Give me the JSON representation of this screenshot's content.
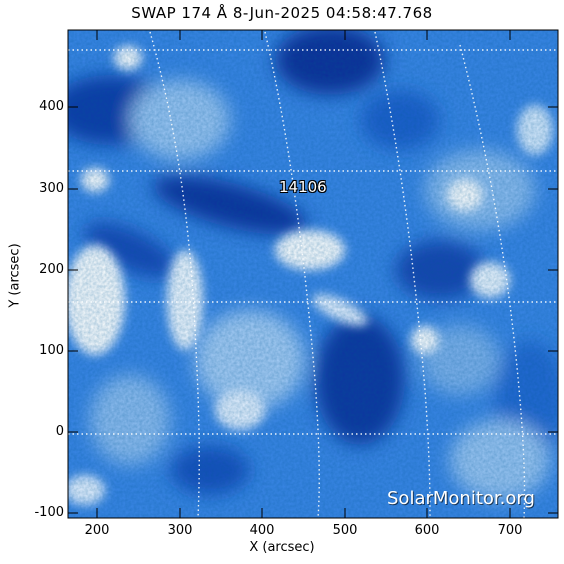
{
  "header": {
    "title": "SWAP 174 Å  8-Jun-2025 04:58:47.768"
  },
  "axes": {
    "xlabel": "X (arcsec)",
    "ylabel": "Y (arcsec)",
    "xticks": [
      "200",
      "300",
      "400",
      "500",
      "600",
      "700"
    ],
    "yticks": [
      "400",
      "300",
      "200",
      "100",
      "0",
      "-100"
    ]
  },
  "annotations": {
    "region_label": "14106"
  },
  "watermark": {
    "text": "SolarMonitor.org"
  },
  "colors": {
    "dark_blue": "#0a2e9a",
    "mid_blue": "#2f7ee0",
    "light_blue": "#9ec9f5",
    "white": "#ffffff"
  }
}
